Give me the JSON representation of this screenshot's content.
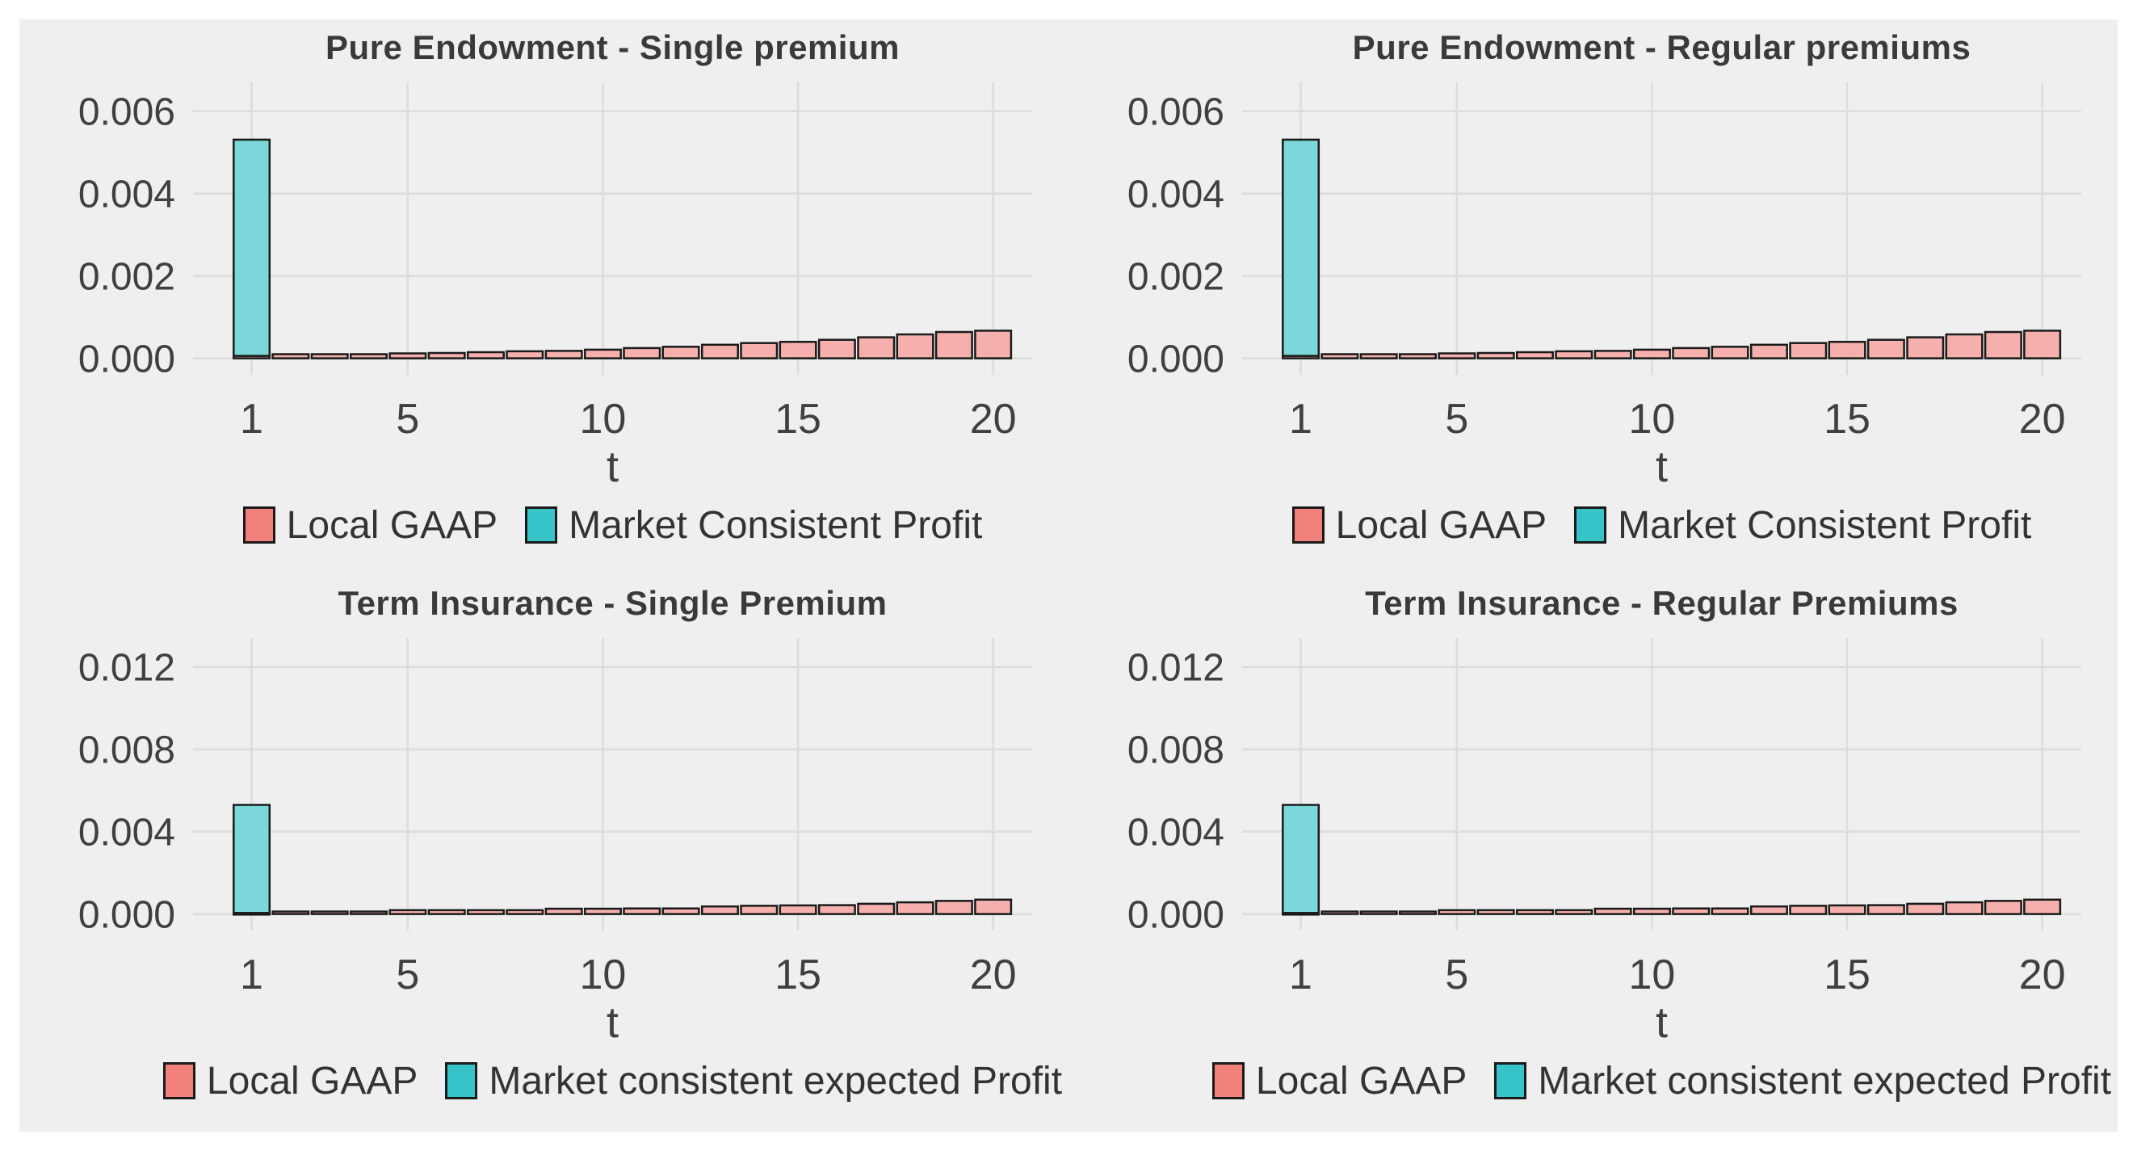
{
  "page": {
    "background": "#ffffff",
    "panel_background": "#efefef"
  },
  "colors": {
    "local_gaap_fill": "#f5b0ad",
    "local_gaap_legend": "#f2807a",
    "market_fill": "#7bd7d9",
    "market_legend": "#36c4c9",
    "bar_stroke": "#1a1a1a",
    "gridline": "#dcdcdc",
    "tick_text": "#404040",
    "title_text": "#3a3a3a",
    "legend_text": "#333333"
  },
  "chart_data": [
    {
      "type": "bar",
      "title": "Pure Endowment - Single premium",
      "xlabel": "t",
      "stacked": true,
      "grid": true,
      "legend_position": "bottom",
      "x": [
        1,
        2,
        3,
        4,
        5,
        6,
        7,
        8,
        9,
        10,
        11,
        12,
        13,
        14,
        15,
        16,
        17,
        18,
        19,
        20
      ],
      "xticks": [
        1,
        5,
        10,
        15,
        20
      ],
      "yticks": [
        0,
        0.002,
        0.004,
        0.006
      ],
      "ytick_labels": [
        "0.000",
        "0.002",
        "0.004",
        "0.006"
      ],
      "ylim": [
        -0.0004,
        0.0067
      ],
      "series": [
        {
          "name": "Local GAAP",
          "color_key": "local_gaap",
          "values": [
            6e-05,
            0.0001,
            0.0001,
            0.0001,
            0.00012,
            0.00013,
            0.00015,
            0.00017,
            0.00018,
            0.00021,
            0.00025,
            0.00028,
            0.00033,
            0.00037,
            0.0004,
            0.00045,
            0.00051,
            0.00058,
            0.00064,
            0.00067
          ]
        },
        {
          "name": "Market Consistent Profit",
          "color_key": "market",
          "values": [
            0.00525,
            0,
            0,
            0,
            0,
            0,
            0,
            0,
            0,
            0,
            0,
            0,
            0,
            0,
            0,
            0,
            0,
            0,
            0,
            0
          ]
        }
      ]
    },
    {
      "type": "bar",
      "title": "Pure Endowment - Regular premiums",
      "xlabel": "t",
      "stacked": true,
      "grid": true,
      "legend_position": "bottom",
      "x": [
        1,
        2,
        3,
        4,
        5,
        6,
        7,
        8,
        9,
        10,
        11,
        12,
        13,
        14,
        15,
        16,
        17,
        18,
        19,
        20
      ],
      "xticks": [
        1,
        5,
        10,
        15,
        20
      ],
      "yticks": [
        0,
        0.002,
        0.004,
        0.006
      ],
      "ytick_labels": [
        "0.000",
        "0.002",
        "0.004",
        "0.006"
      ],
      "ylim": [
        -0.0004,
        0.0067
      ],
      "series": [
        {
          "name": "Local GAAP",
          "color_key": "local_gaap",
          "values": [
            6e-05,
            0.0001,
            0.0001,
            0.0001,
            0.00012,
            0.00013,
            0.00015,
            0.00017,
            0.00018,
            0.00021,
            0.00025,
            0.00028,
            0.00033,
            0.00037,
            0.0004,
            0.00045,
            0.00051,
            0.00058,
            0.00064,
            0.00067
          ]
        },
        {
          "name": "Market Consistent Profit",
          "color_key": "market",
          "values": [
            0.00525,
            0,
            0,
            0,
            0,
            0,
            0,
            0,
            0,
            0,
            0,
            0,
            0,
            0,
            0,
            0,
            0,
            0,
            0,
            0
          ]
        }
      ]
    },
    {
      "type": "bar",
      "title": "Term Insurance - Single Premium",
      "xlabel": "t",
      "stacked": true,
      "grid": true,
      "legend_position": "bottom",
      "x": [
        1,
        2,
        3,
        4,
        5,
        6,
        7,
        8,
        9,
        10,
        11,
        12,
        13,
        14,
        15,
        16,
        17,
        18,
        19,
        20
      ],
      "xticks": [
        1,
        5,
        10,
        15,
        20
      ],
      "yticks": [
        0,
        0.004,
        0.008,
        0.012
      ],
      "ytick_labels": [
        "0.000",
        "0.004",
        "0.008",
        "0.012"
      ],
      "ylim": [
        -0.0008,
        0.0134
      ],
      "series": [
        {
          "name": "Local GAAP",
          "color_key": "local_gaap",
          "values": [
            5e-05,
            0.00012,
            0.00012,
            0.00012,
            0.00019,
            0.00019,
            0.00019,
            0.00019,
            0.00026,
            0.00026,
            0.00027,
            0.00027,
            0.00037,
            0.0004,
            0.00042,
            0.00043,
            0.0005,
            0.00057,
            0.00064,
            0.0007
          ]
        },
        {
          "name": "Market consistent expected Profit",
          "color_key": "market",
          "values": [
            0.00525,
            0,
            0,
            0,
            0,
            0,
            0,
            0,
            0,
            0,
            0,
            0,
            0,
            0,
            0,
            0,
            0,
            0,
            0,
            0
          ]
        }
      ]
    },
    {
      "type": "bar",
      "title": "Term Insurance - Regular Premiums",
      "xlabel": "t",
      "stacked": true,
      "grid": true,
      "legend_position": "bottom",
      "x": [
        1,
        2,
        3,
        4,
        5,
        6,
        7,
        8,
        9,
        10,
        11,
        12,
        13,
        14,
        15,
        16,
        17,
        18,
        19,
        20
      ],
      "xticks": [
        1,
        5,
        10,
        15,
        20
      ],
      "yticks": [
        0,
        0.004,
        0.008,
        0.012
      ],
      "ytick_labels": [
        "0.000",
        "0.004",
        "0.008",
        "0.012"
      ],
      "ylim": [
        -0.0008,
        0.0134
      ],
      "series": [
        {
          "name": "Local GAAP",
          "color_key": "local_gaap",
          "values": [
            5e-05,
            0.00012,
            0.00012,
            0.00012,
            0.00019,
            0.00019,
            0.00019,
            0.00019,
            0.00026,
            0.00026,
            0.00027,
            0.00027,
            0.00037,
            0.0004,
            0.00042,
            0.00043,
            0.0005,
            0.00057,
            0.00064,
            0.0007
          ]
        },
        {
          "name": "Market consistent expected Profit",
          "color_key": "market",
          "values": [
            0.00525,
            0,
            0,
            0,
            0,
            0,
            0,
            0,
            0,
            0,
            0,
            0,
            0,
            0,
            0,
            0,
            0,
            0,
            0,
            0
          ]
        }
      ]
    }
  ]
}
